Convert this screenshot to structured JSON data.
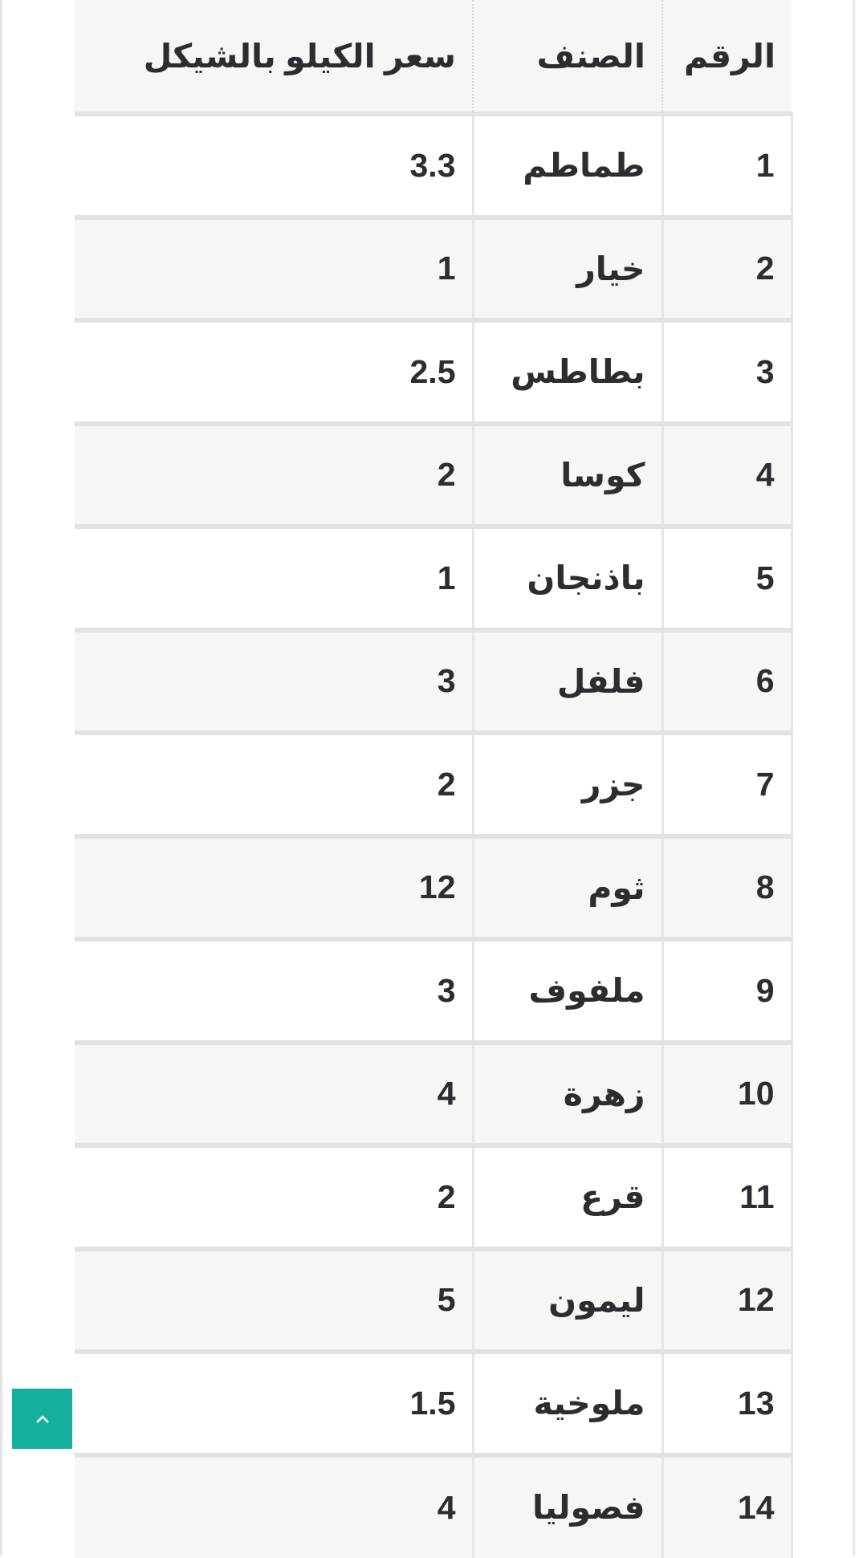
{
  "table": {
    "headers": [
      "الرقم",
      "الصنف",
      "سعر الكيلو بالشيكل"
    ],
    "rows": [
      [
        "1",
        "طماطم",
        "3.3"
      ],
      [
        "2",
        "خيار",
        "1"
      ],
      [
        "3",
        "بطاطس",
        "2.5"
      ],
      [
        "4",
        "كوسا",
        "2"
      ],
      [
        "5",
        "باذنجان",
        "1"
      ],
      [
        "6",
        "فلفل",
        "3"
      ],
      [
        "7",
        "جزر",
        "2"
      ],
      [
        "8",
        "ثوم",
        "12"
      ],
      [
        "9",
        "ملفوف",
        "3"
      ],
      [
        "10",
        "زهرة",
        "4"
      ],
      [
        "11",
        "قرع",
        "2"
      ],
      [
        "12",
        "ليمون",
        "5"
      ],
      [
        "13",
        "ملوخية",
        "1.5"
      ],
      [
        "14",
        "فصوليا",
        "4"
      ]
    ]
  },
  "back_to_top": {
    "icon": "chevron-up-icon",
    "color": "#14b09b"
  }
}
